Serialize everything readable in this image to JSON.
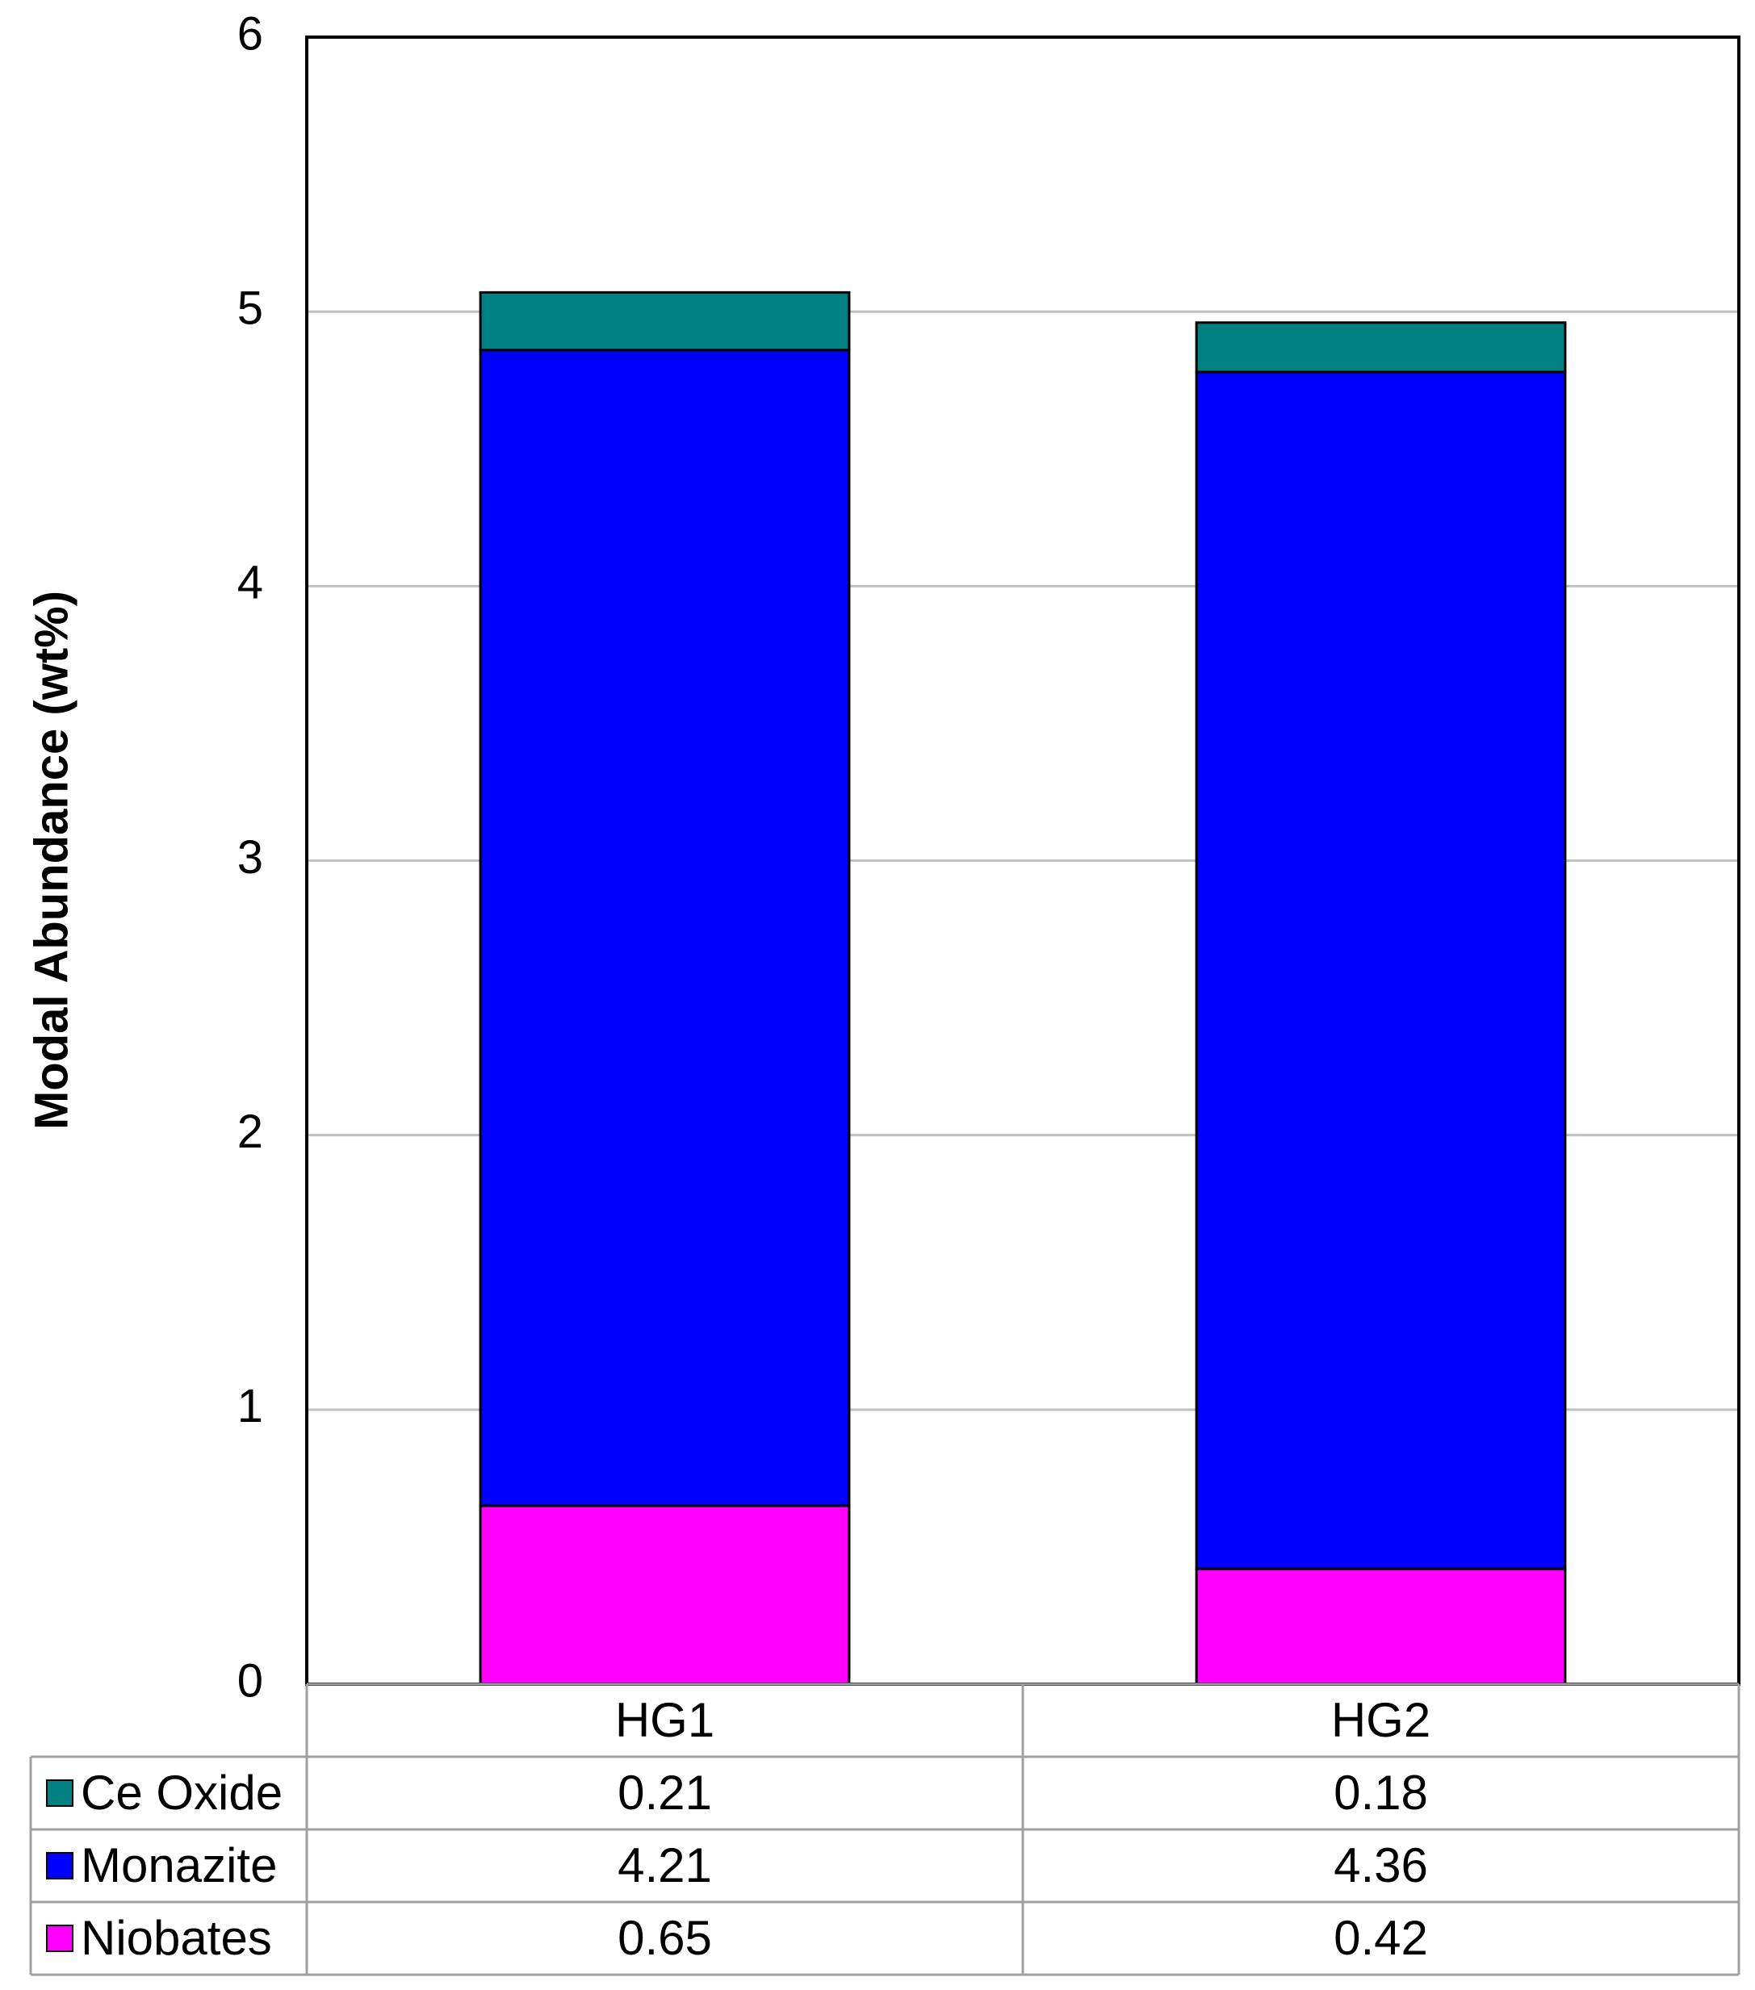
{
  "chart_data": {
    "type": "bar",
    "stacked": true,
    "categories": [
      "HG1",
      "HG2"
    ],
    "series": [
      {
        "name": "Niobates",
        "values": [
          0.65,
          0.42
        ],
        "color": "#ff00ff"
      },
      {
        "name": "Monazite",
        "values": [
          4.21,
          4.36
        ],
        "color": "#0000ff"
      },
      {
        "name": "Ce Oxide",
        "values": [
          0.21,
          0.18
        ],
        "color": "#008080"
      }
    ],
    "table_rows": [
      {
        "name": "Ce Oxide",
        "values": [
          "0.21",
          "0.18"
        ],
        "color": "#008080"
      },
      {
        "name": "Monazite",
        "values": [
          "4.21",
          "4.36"
        ],
        "color": "#0000ff"
      },
      {
        "name": "Niobates",
        "values": [
          "0.65",
          "0.42"
        ],
        "color": "#ff00ff"
      }
    ],
    "title": "",
    "xlabel": "",
    "ylabel": "Modal Abundance (wt%)",
    "ylim": [
      0,
      6
    ],
    "yticks": [
      0,
      1,
      2,
      3,
      4,
      5,
      6
    ],
    "grid": true,
    "legend": "data-table"
  }
}
